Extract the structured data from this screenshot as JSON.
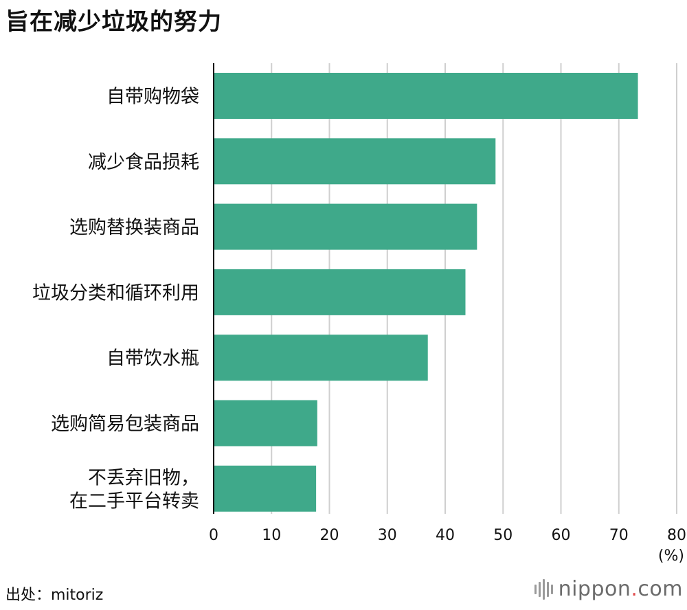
{
  "chart_data": {
    "type": "bar",
    "orientation": "horizontal",
    "title": "旨在减少垃圾的努力",
    "categories": [
      [
        "自带购物袋"
      ],
      [
        "减少食品损耗"
      ],
      [
        "选购替换装商品"
      ],
      [
        "垃圾分类和循环利用"
      ],
      [
        "自带饮水瓶"
      ],
      [
        "选购简易包装商品"
      ],
      [
        "不丢弃旧物，",
        "在二手平台转卖"
      ]
    ],
    "values": [
      73.3,
      48.7,
      45.5,
      43.5,
      37.0,
      17.9,
      17.7
    ],
    "xlim": [
      0,
      80
    ],
    "xticks": [
      "0",
      "10",
      "20",
      "30",
      "40",
      "50",
      "60",
      "70",
      "80"
    ],
    "xunit": "(%)",
    "grid": true,
    "bar_color": "#3fa98a"
  },
  "source": "出处：mitoriz",
  "brand": {
    "text": "nippon",
    "dot": ".",
    "suffix": "com",
    "bar_color": "#9a9a9a",
    "dot_color": "#e0484a"
  }
}
